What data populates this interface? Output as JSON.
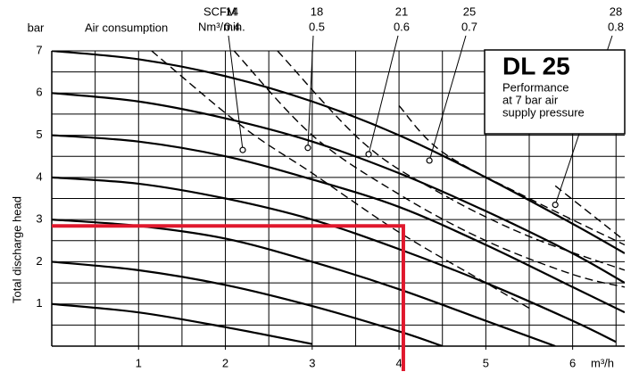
{
  "chart_data": {
    "type": "line",
    "title": "DL 25",
    "subtitle": [
      "Performance",
      "at 7 bar air",
      "supply pressure"
    ],
    "y_unit": "bar",
    "x_unit": "m³/h",
    "ylabel": "Total discharge head",
    "air_label": "Air consumption",
    "scfm_label": "SCFM",
    "nm3_label": "Nm³/min.",
    "xlim": [
      0,
      6.6
    ],
    "ylim": [
      0,
      7
    ],
    "xticks": [
      1,
      2,
      3,
      4,
      5,
      6
    ],
    "yticks": [
      1,
      2,
      3,
      4,
      5,
      6,
      7
    ],
    "xgrid": [
      0.5,
      1,
      1.5,
      2,
      2.5,
      3,
      3.5,
      4,
      4.5,
      5,
      5.5,
      6,
      6.5
    ],
    "ygrid": [
      0.5,
      1,
      1.5,
      2,
      2.5,
      3,
      3.5,
      4,
      4.5,
      5,
      5.5,
      6,
      6.5,
      7
    ],
    "grid": true,
    "series": [
      {
        "color": "#000",
        "x": [
          0,
          1,
          2,
          3,
          4,
          5,
          6,
          6.6
        ],
        "values": [
          7,
          6.8,
          6.4,
          5.8,
          5.0,
          4.0,
          2.9,
          2.2
        ]
      },
      {
        "color": "#000",
        "x": [
          0,
          1,
          2,
          3,
          4,
          5,
          6,
          6.6
        ],
        "values": [
          6,
          5.8,
          5.4,
          4.85,
          4.1,
          3.2,
          2.2,
          1.5
        ]
      },
      {
        "color": "#000",
        "x": [
          0,
          1,
          2,
          3,
          4,
          5,
          6,
          6.6
        ],
        "values": [
          5,
          4.85,
          4.5,
          3.95,
          3.3,
          2.4,
          1.4,
          0.8
        ]
      },
      {
        "color": "#000",
        "x": [
          0,
          1,
          2,
          3,
          4,
          5,
          6,
          6.5
        ],
        "values": [
          4,
          3.85,
          3.5,
          3.0,
          2.3,
          1.5,
          0.6,
          0.1
        ]
      },
      {
        "color": "#000",
        "x": [
          0,
          1,
          2,
          3,
          4,
          5,
          5.8
        ],
        "values": [
          3,
          2.85,
          2.55,
          2.0,
          1.35,
          0.6,
          0
        ]
      },
      {
        "color": "#000",
        "x": [
          0,
          1,
          2,
          3,
          4,
          4.5
        ],
        "values": [
          2,
          1.8,
          1.45,
          0.95,
          0.35,
          0
        ]
      },
      {
        "color": "#000",
        "x": [
          0,
          1,
          2,
          3
        ],
        "values": [
          1,
          0.8,
          0.45,
          0.05
        ]
      }
    ],
    "air_series": [
      {
        "scfm": 14,
        "nm3": 0.4,
        "x": [
          1.15,
          2.2,
          3,
          4,
          5,
          5.5
        ],
        "values": [
          7,
          5.2,
          4.1,
          2.7,
          1.5,
          0.9
        ],
        "marker_x": 2.2,
        "marker_y": 4.65
      },
      {
        "scfm": 18,
        "nm3": 0.5,
        "x": [
          2.1,
          3,
          4,
          5,
          6,
          6.6
        ],
        "values": [
          7,
          5.0,
          3.6,
          2.5,
          1.7,
          1.4
        ],
        "marker_x": 2.95,
        "marker_y": 4.7
      },
      {
        "scfm": 21,
        "nm3": 0.6,
        "x": [
          2.6,
          3.6,
          4.5,
          5.5,
          6.6
        ],
        "values": [
          7,
          4.8,
          3.6,
          2.6,
          1.8
        ],
        "marker_x": 3.65,
        "marker_y": 4.55
      },
      {
        "scfm": 25,
        "nm3": 0.7,
        "x": [
          4,
          4.5,
          5.5,
          6.6
        ],
        "values": [
          5.7,
          4.6,
          3.5,
          2.4
        ],
        "marker_x": 4.35,
        "marker_y": 4.4
      },
      {
        "scfm": 28,
        "nm3": 0.8,
        "x": [
          5.8,
          6.6
        ],
        "values": [
          3.8,
          2.5
        ],
        "marker_x": 5.8,
        "marker_y": 3.35
      }
    ],
    "operating_point": {
      "x": 4.05,
      "y": 2.85,
      "color": "#e0182d"
    }
  }
}
